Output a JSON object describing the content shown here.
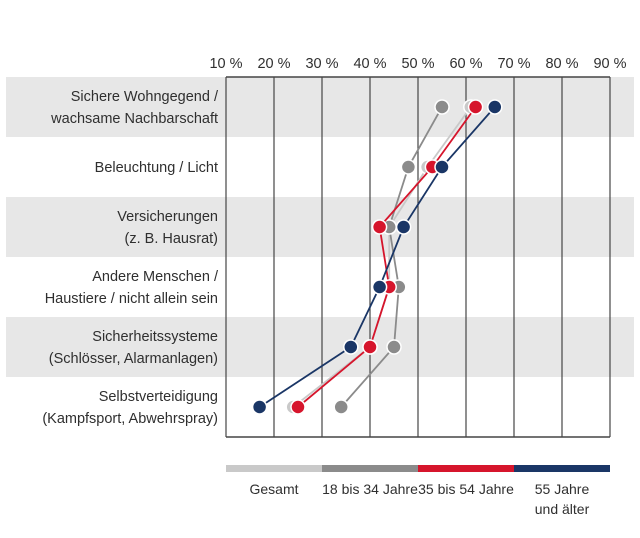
{
  "chart_data": {
    "type": "scatter",
    "description": "Dot-line survey chart, horizontal percentage axis on top, 6 category rows with alternating shaded bands, 4 series",
    "x_axis": {
      "min": 10,
      "max": 90,
      "ticks": [
        10,
        20,
        30,
        40,
        50,
        60,
        70,
        80,
        90
      ],
      "tick_labels": [
        "10 %",
        "20 %",
        "30 %",
        "40 %",
        "50 %",
        "60 %",
        "70 %",
        "80 %",
        "90 %"
      ]
    },
    "categories": [
      [
        "Sichere Wohngegend /",
        "wachsame Nachbarschaft"
      ],
      [
        "Beleuchtung / Licht"
      ],
      [
        "Versicherungen",
        "(z. B. Hausrat)"
      ],
      [
        "Andere Menschen /",
        "Haustiere / nicht allein sein"
      ],
      [
        "Sicherheitssysteme",
        "(Schlösser, Alarmanlagen)"
      ],
      [
        "Selbstverteidigung",
        "(Kampfsport, Abwehrspray)"
      ]
    ],
    "series": [
      {
        "name": "Gesamt",
        "color": "#c9c9c9",
        "values": [
          61,
          52,
          44,
          44,
          40,
          24
        ]
      },
      {
        "name": "18 bis 34 Jahre",
        "color": "#8b8b8b",
        "values": [
          55,
          48,
          44,
          46,
          45,
          34
        ]
      },
      {
        "name": "35 bis 54 Jahre",
        "color": "#d6152c",
        "values": [
          62,
          53,
          42,
          44,
          40,
          25
        ]
      },
      {
        "name": "55 Jahre und älter",
        "color": "#1a3666",
        "values": [
          66,
          55,
          47,
          42,
          36,
          17
        ]
      }
    ],
    "legend": {
      "position": "bottom",
      "labels": [
        [
          "Gesamt"
        ],
        [
          "18 bis 34 Jahre"
        ],
        [
          "35 bis 54 Jahre"
        ],
        [
          "55 Jahre",
          "und älter"
        ]
      ]
    },
    "grid": "vertical",
    "band_color": "#e7e7e7",
    "gridline_color": "#454545",
    "text_color": "#2f2f2f"
  }
}
